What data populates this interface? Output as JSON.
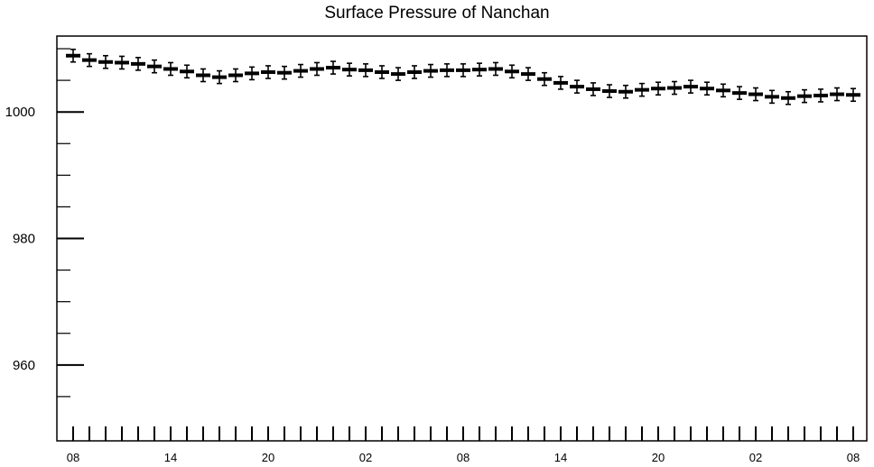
{
  "chart_data": {
    "type": "scatter",
    "title": "Surface Pressure of Nanchan",
    "xlabel": "",
    "ylabel": "",
    "ylim": [
      948,
      1012
    ],
    "y_ticks": [
      960,
      980,
      1000
    ],
    "x_tick_labels": [
      "08",
      "14",
      "20",
      "02",
      "08",
      "14",
      "20",
      "02",
      "08"
    ],
    "error_bar": 1.0,
    "grid": false,
    "legend": "none",
    "colors": {
      "marker": "#000000",
      "axis": "#000000",
      "background": "#ffffff"
    },
    "series": [
      {
        "values": [
          1008.9,
          1008.2,
          1007.9,
          1007.8,
          1007.6,
          1007.2,
          1006.8,
          1006.4,
          1005.8,
          1005.5,
          1005.8,
          1006.1,
          1006.3,
          1006.2,
          1006.5,
          1006.8,
          1007.0,
          1006.7,
          1006.6,
          1006.3,
          1006.0,
          1006.3,
          1006.5,
          1006.6,
          1006.6,
          1006.7,
          1006.8,
          1006.4,
          1006.0,
          1005.2,
          1004.6,
          1004.0,
          1003.6,
          1003.3,
          1003.2,
          1003.5,
          1003.7,
          1003.8,
          1004.0,
          1003.7,
          1003.4,
          1003.0,
          1002.8,
          1002.4,
          1002.2,
          1002.5,
          1002.6,
          1002.8,
          1002.7
        ]
      }
    ]
  }
}
